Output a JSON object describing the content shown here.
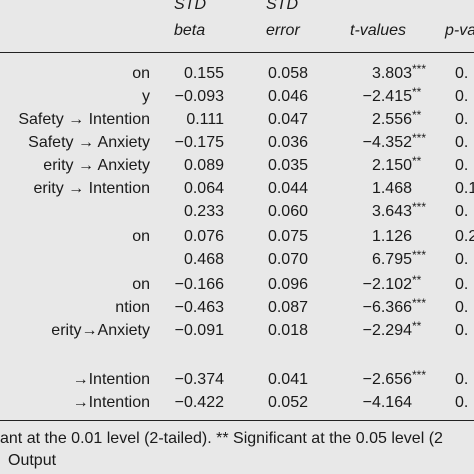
{
  "header": {
    "std_beta_1": "STD",
    "std_beta_2": "beta",
    "std_error_1": "STD",
    "std_error_2": "error",
    "t_values": "t-values",
    "p_values": "p-va"
  },
  "rows": [
    {
      "label": "on",
      "beta": "0.155",
      "error": "0.058",
      "t": "3.803",
      "stars": "***",
      "p": "0."
    },
    {
      "label": "y",
      "beta": "−0.093",
      "error": "0.046",
      "t": "−2.415",
      "stars": "**",
      "p": "0."
    },
    {
      "label": "Safety → Intention",
      "beta": "0.111",
      "error": "0.047",
      "t": "2.556",
      "stars": "**",
      "p": "0."
    },
    {
      "label": "Safety → Anxiety",
      "beta": "−0.175",
      "error": "0.036",
      "t": "−4.352",
      "stars": "***",
      "p": "0."
    },
    {
      "label": "erity → Anxiety",
      "beta": "0.089",
      "error": "0.035",
      "t": "2.150",
      "stars": "**",
      "p": "0."
    },
    {
      "label": "erity → Intention",
      "beta": "0.064",
      "error": "0.044",
      "t": "1.468",
      "stars": "",
      "p": "0.1"
    },
    {
      "label": "",
      "beta": "0.233",
      "error": "0.060",
      "t": "3.643",
      "stars": "***",
      "p": "0."
    },
    {
      "label": "on",
      "beta": "0.076",
      "error": "0.075",
      "t": "1.126",
      "stars": "",
      "p": "0.2"
    },
    {
      "label": "",
      "beta": "0.468",
      "error": "0.070",
      "t": "6.795",
      "stars": "***",
      "p": "0."
    },
    {
      "label": "on",
      "beta": "−0.166",
      "error": "0.096",
      "t": "−2.102",
      "stars": "**",
      "p": "0."
    },
    {
      "label": "ntion",
      "beta": "−0.463",
      "error": "0.087",
      "t": "−6.366",
      "stars": "***",
      "p": "0."
    },
    {
      "label": "erity→Anxiety",
      "beta": "−0.091",
      "error": "0.018",
      "t": "−2.294",
      "stars": "**",
      "p": "0."
    },
    {
      "label": "→Intention",
      "beta": "−0.374",
      "error": "0.041",
      "t": "−2.656",
      "stars": "***",
      "p": "0."
    },
    {
      "label": "→Intention",
      "beta": "−0.422",
      "error": "0.052",
      "t": "−4.164",
      "stars": "",
      "p": "0."
    }
  ],
  "notes": {
    "line1": "ant at the 0.01 level (2-tailed). ** Significant at the 0.05 level (2",
    "line2": "Output"
  }
}
